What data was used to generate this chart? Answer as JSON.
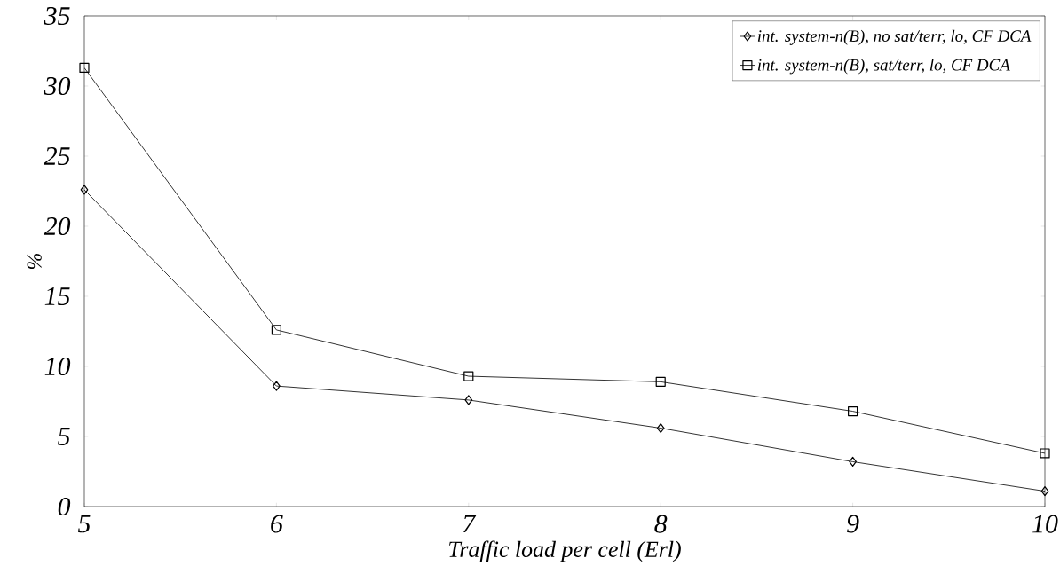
{
  "chart_data": {
    "type": "line",
    "xlabel": "Traffic load per cell (Erl)",
    "ylabel": "%",
    "x": [
      5,
      6,
      7,
      8,
      9,
      10
    ],
    "series": [
      {
        "name": "int. system-n(B), no sat/terr, lo, CF DCA",
        "color": "#000000",
        "marker": "diamond",
        "values": [
          22.6,
          8.6,
          7.6,
          5.6,
          3.2,
          1.1
        ]
      },
      {
        "name": "int. system-n(B), sat/terr, lo, CF DCA",
        "color": "#000000",
        "marker": "square",
        "values": [
          31.3,
          12.6,
          9.3,
          8.9,
          6.8,
          3.8
        ]
      }
    ],
    "xlim": [
      5,
      10
    ],
    "xticks": [
      5,
      6,
      7,
      8,
      9,
      10
    ],
    "ylim": [
      0,
      35
    ],
    "yticks": [
      0,
      5,
      10,
      15,
      20,
      25,
      30,
      35
    ],
    "grid": false,
    "legend": "top right",
    "line_style": "solid"
  }
}
